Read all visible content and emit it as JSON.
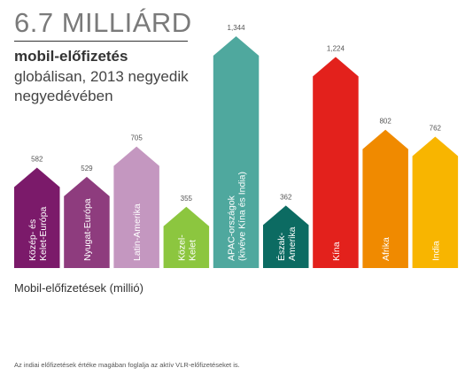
{
  "headline": "6.7 MILLIÁRD",
  "subtitle_bold": "mobil-előfizetés",
  "subtitle_rest": "globálisan, 2013 negyedik negyedévében",
  "footnote": "Az indiai előfizetések értéke magában foglalja az aktív VLR-előfizetéseket is.",
  "chart_data": {
    "type": "bar",
    "title": "6.7 MILLIÁRD mobil-előfizetés globálisan, 2013 negyedik negyedévében",
    "ylabel": "Mobil-előfizetések (millió)",
    "xlabel": "",
    "categories": [
      [
        "Közép- és",
        "Kelet-Európa"
      ],
      [
        "Nyugat-Európa"
      ],
      [
        "Latin-Amerika"
      ],
      [
        "Közel-",
        "Kelet"
      ],
      [
        "APAC-országok",
        "(kivéve Kína és India)"
      ],
      [
        "Észak-",
        "Amerika"
      ],
      [
        "Kína"
      ],
      [
        "Afrika"
      ],
      [
        "India"
      ]
    ],
    "values": [
      582,
      529,
      705,
      355,
      1344,
      362,
      1224,
      802,
      762
    ],
    "value_labels": [
      "582",
      "529",
      "705",
      "355",
      "1,344",
      "362",
      "1,224",
      "802",
      "762"
    ],
    "colors": [
      "#7b1a6a",
      "#8e3c7e",
      "#c497c0",
      "#8cc63f",
      "#4fa89e",
      "#0c6b62",
      "#e3211c",
      "#f08a00",
      "#f8b500"
    ],
    "ylim": [
      0,
      1344
    ],
    "grid": false,
    "legend": "none"
  }
}
